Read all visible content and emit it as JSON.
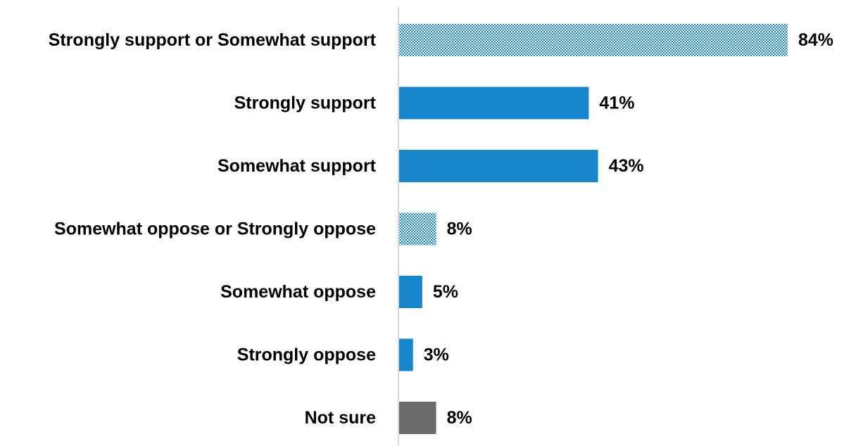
{
  "chart_data": {
    "type": "bar",
    "orientation": "horizontal",
    "categories": [
      "Strongly support or Somewhat support",
      "Strongly support",
      "Somewhat support",
      "Somewhat oppose or Strongly oppose",
      "Somewhat oppose",
      "Strongly oppose",
      "Not sure"
    ],
    "values": [
      84,
      41,
      43,
      8,
      5,
      3,
      8
    ],
    "value_labels": [
      "84%",
      "41%",
      "43%",
      "8%",
      "5%",
      "3%",
      "8%"
    ],
    "bar_styles": [
      "pattern",
      "solid",
      "solid",
      "pattern",
      "solid",
      "solid",
      "gray"
    ],
    "xlim": [
      0,
      84
    ],
    "grid": false,
    "colors": {
      "solid": "#1886cc",
      "pattern": "#1886cc",
      "gray": "#6b6b6b",
      "axis": "#d9d9d9",
      "text": "#000000"
    }
  }
}
